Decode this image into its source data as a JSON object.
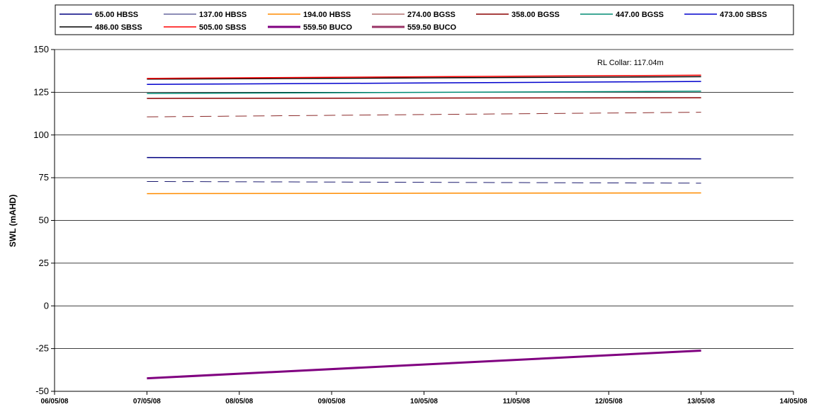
{
  "chart_data": {
    "type": "line",
    "title": "",
    "xlabel": "",
    "ylabel": "SWL (mAHD)",
    "ylim": [
      -50,
      150
    ],
    "yticks": [
      -50,
      -25,
      0,
      25,
      50,
      75,
      100,
      125,
      150
    ],
    "xticks": [
      "06/05/08",
      "07/05/08",
      "08/05/08",
      "09/05/08",
      "10/05/08",
      "11/05/08",
      "12/05/08",
      "13/05/08",
      "14/05/08"
    ],
    "xlim": [
      "06/05/08",
      "14/05/08"
    ],
    "x": [
      "07/05/08",
      "13/05/08"
    ],
    "grid": "horizontal",
    "legend": "top",
    "annotation": "RL Collar: 117.04m",
    "series": [
      {
        "name": "65.00 HBSS",
        "color": "#000080",
        "dash": "solid",
        "width": 1.5,
        "values": [
          86.8,
          86.0
        ]
      },
      {
        "name": "137.00 HBSS",
        "color": "#1a1a6e",
        "dash": "dashed",
        "width": 1,
        "values": [
          72.8,
          71.8
        ]
      },
      {
        "name": "194.00 HBSS",
        "color": "#ff8c00",
        "dash": "solid",
        "width": 1.5,
        "values": [
          65.7,
          66.1
        ]
      },
      {
        "name": "274.00 BGSS",
        "color": "#8b2a2a",
        "dash": "dashed",
        "width": 1,
        "values": [
          110.6,
          113.3
        ]
      },
      {
        "name": "358.00 BGSS",
        "color": "#8b0000",
        "dash": "solid",
        "width": 1.5,
        "values": [
          121.4,
          121.8
        ]
      },
      {
        "name": "447.00 BGSS",
        "color": "#008b74",
        "dash": "solid",
        "width": 1.5,
        "values": [
          124.3,
          125.6
        ]
      },
      {
        "name": "473.00 SBSS",
        "color": "#0000cd",
        "dash": "solid",
        "width": 1.5,
        "values": [
          129.6,
          131.3
        ]
      },
      {
        "name": "486.00 SBSS",
        "color": "#000000",
        "dash": "solid",
        "width": 1.5,
        "values": [
          132.7,
          134.1
        ]
      },
      {
        "name": "505.00 SBSS",
        "color": "#ff0000",
        "dash": "solid",
        "width": 1.5,
        "values": [
          133.1,
          135.0
        ]
      },
      {
        "name": "559.50 BUCO",
        "color": "#800080",
        "dash": "solid",
        "width": 3,
        "values": [
          -42.4,
          -26.2
        ]
      },
      {
        "name": "559.50 BUCO",
        "color": "#993366",
        "dash": "solid",
        "width": 3,
        "values": [
          null,
          null
        ]
      }
    ]
  }
}
